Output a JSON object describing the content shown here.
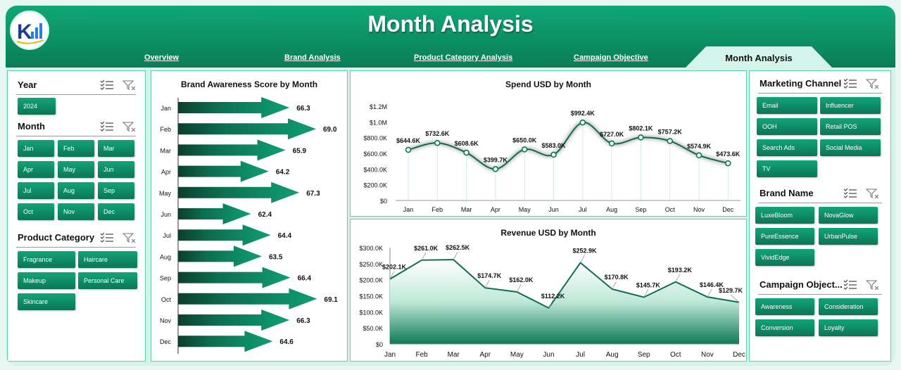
{
  "header": {
    "title": "Month Analysis",
    "tabs": [
      {
        "label": "Overview"
      },
      {
        "label": "Brand Analysis"
      },
      {
        "label": "Product Category Analysis"
      },
      {
        "label": "Campaign Objective"
      },
      {
        "label": "Month Analysis"
      }
    ]
  },
  "colors": {
    "accent": "#0b7c57",
    "button": "#0f8f67",
    "background": "#d4f3ea"
  },
  "left_slicers": {
    "year": {
      "title": "Year",
      "items": [
        "2024"
      ]
    },
    "month": {
      "title": "Month",
      "items": [
        "Jan",
        "Feb",
        "Mar",
        "Apr",
        "May",
        "Jun",
        "Jul",
        "Aug",
        "Sep",
        "Oct",
        "Nov",
        "Dec"
      ]
    },
    "product_category": {
      "title": "Product Category",
      "items": [
        "Fragrance",
        "Haircare",
        "Makeup",
        "Personal Care",
        "Skincare"
      ]
    }
  },
  "right_slicers": {
    "marketing_channel": {
      "title": "Marketing Channel",
      "items": [
        "Email",
        "Influencer",
        "OOH",
        "Retail POS",
        "Search Ads",
        "Social Media",
        "TV"
      ]
    },
    "brand_name": {
      "title": "Brand Name",
      "items": [
        "LuxeBloom",
        "NovaGlow",
        "PureEssence",
        "UrbanPulse",
        "VividEdge"
      ]
    },
    "campaign_objective": {
      "title": "Campaign Object...",
      "items": [
        "Awareness",
        "Consideration",
        "Conversion",
        "Loyalty"
      ]
    }
  },
  "chart_data": [
    {
      "type": "bar",
      "orientation": "horizontal",
      "title": "Brand Awareness Score by Month",
      "categories": [
        "Jan",
        "Feb",
        "Mar",
        "Apr",
        "May",
        "Jun",
        "Jul",
        "Aug",
        "Sep",
        "Oct",
        "Nov",
        "Dec"
      ],
      "values": [
        66.3,
        69.0,
        65.9,
        64.2,
        67.3,
        62.4,
        64.4,
        63.5,
        66.4,
        69.1,
        66.3,
        64.6
      ],
      "labels": [
        "66.3",
        "69.0",
        "65.9",
        "64.2",
        "67.3",
        "62.4",
        "64.4",
        "63.5",
        "66.4",
        "69.1",
        "66.3",
        "64.6"
      ],
      "xlim": [
        55,
        70
      ],
      "grid": false,
      "legend": "none"
    },
    {
      "type": "line",
      "title": "Spend USD by Month",
      "categories": [
        "Jan",
        "Feb",
        "Mar",
        "Apr",
        "May",
        "Jun",
        "Jul",
        "Aug",
        "Sep",
        "Oct",
        "Nov",
        "Dec"
      ],
      "values": [
        644.6,
        732.6,
        608.6,
        399.7,
        650.0,
        583.0,
        992.4,
        727.0,
        802.1,
        757.2,
        574.9,
        473.6
      ],
      "labels": [
        "$644.6K",
        "$732.6K",
        "$608.6K",
        "$399.7K",
        "$650.0K",
        "$583.0K",
        "$992.4K",
        "$727.0K",
        "$802.1K",
        "$757.2K",
        "$574.9K",
        "$473.6K"
      ],
      "yticks": [
        "$0",
        "$200.0K",
        "$400.0K",
        "$600.0K",
        "$800.0K",
        "$1.0M",
        "$1.2M"
      ],
      "ylim": [
        0,
        1200
      ],
      "grid": "vertical",
      "legend": "none"
    },
    {
      "type": "area",
      "title": "Revenue USD by Month",
      "categories": [
        "Jan",
        "Feb",
        "Mar",
        "Apr",
        "May",
        "Jun",
        "Jul",
        "Aug",
        "Sep",
        "Oct",
        "Nov",
        "Dec"
      ],
      "values": [
        202.1,
        261.0,
        262.5,
        174.7,
        162.0,
        112.2,
        252.9,
        170.8,
        145.7,
        193.2,
        146.4,
        129.7
      ],
      "labels": [
        "$202.1K",
        "$261.0K",
        "$262.5K",
        "$174.7K",
        "$162.0K",
        "$112.2K",
        "$252.9K",
        "$170.8K",
        "$145.7K",
        "$193.2K",
        "$146.4K",
        "$129.7K"
      ],
      "yticks": [
        "$0",
        "$50.0K",
        "$100.0K",
        "$150.0K",
        "$200.0K",
        "$250.0K",
        "$300.0K"
      ],
      "ylim": [
        0,
        300
      ],
      "grid": false,
      "legend": "none"
    }
  ]
}
